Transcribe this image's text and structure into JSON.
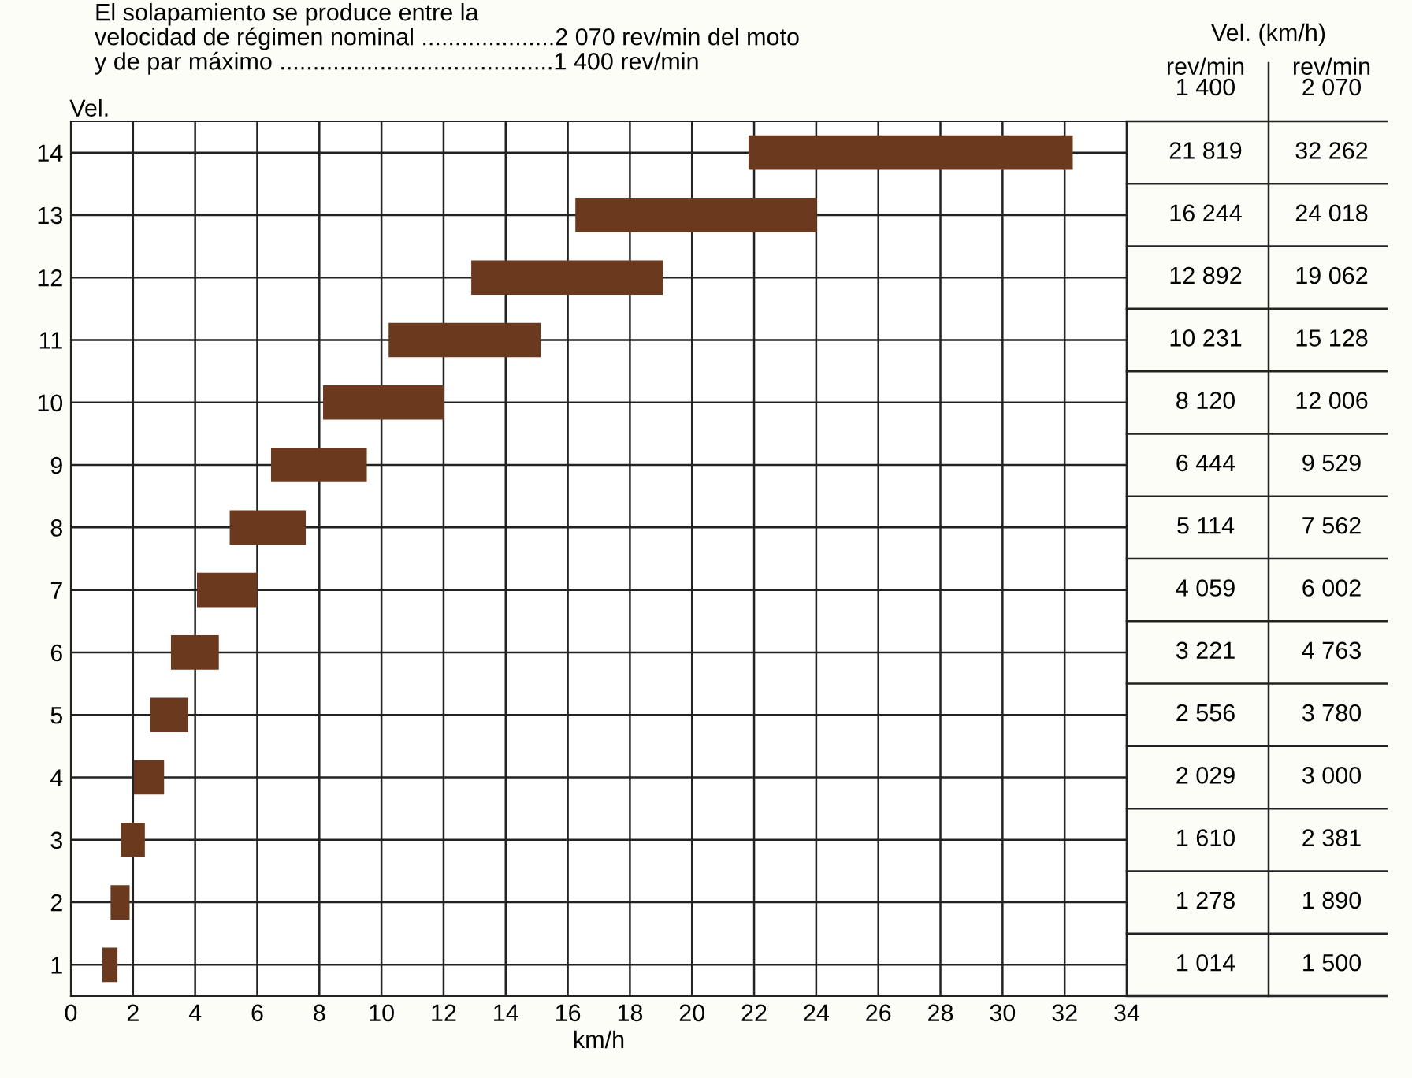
{
  "chart_data": {
    "type": "bar",
    "orientation": "horizontal",
    "title": "El solapamiento se produce entre la\nvelocidad de régimen nominal ....................2 070 rev/min del moto\ny de par máximo .........................................1 400 rev/min",
    "xlabel": "km/h",
    "ylabel": "Vel.",
    "categories": [
      "14",
      "13",
      "12",
      "11",
      "10",
      "9",
      "8",
      "7",
      "6",
      "5",
      "4",
      "3",
      "2",
      "1"
    ],
    "base": [
      21.819,
      16.244,
      12.892,
      10.231,
      8.12,
      6.444,
      5.114,
      4.059,
      3.221,
      2.556,
      2.029,
      1.61,
      1.278,
      1.014
    ],
    "values": [
      10.443,
      7.774,
      6.17,
      4.897,
      3.886,
      3.085,
      2.448,
      1.943,
      1.542,
      1.224,
      0.971,
      0.771,
      0.612,
      0.486
    ],
    "color": "#6b3a1e",
    "xlim": [
      0,
      34
    ],
    "xticks": [
      0,
      2,
      4,
      6,
      8,
      10,
      12,
      14,
      16,
      18,
      20,
      22,
      24,
      26,
      28,
      30,
      32,
      34
    ],
    "grid": true,
    "annotations": [
      "Vel. (km/h)",
      "rev/min\n1 400",
      "rev/min\n2 070",
      "21 819",
      "32 262",
      "16 244",
      "24 018",
      "12 892",
      "19 062",
      "10 231",
      "15 128",
      "8 120",
      "12 006",
      "6 444",
      "9 529",
      "5 114",
      "7 562",
      "4 059",
      "6 002",
      "3 221",
      "4 763",
      "2 556",
      "3 780",
      "2 029",
      "3 000",
      "1 610",
      "2 381",
      "1 278",
      "1 890",
      "1 014",
      "1 500"
    ]
  }
}
